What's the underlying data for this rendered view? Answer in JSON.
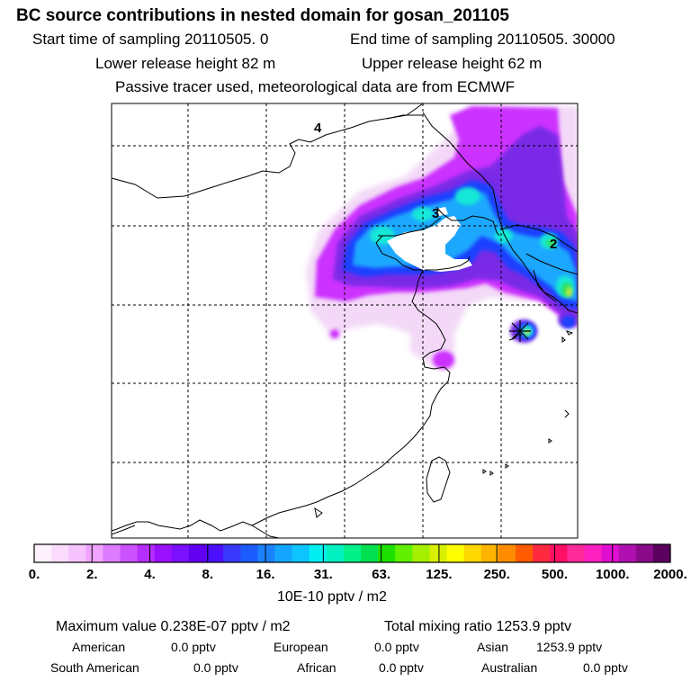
{
  "header": {
    "title": "BC  source contributions in nested domain for gosan_201105",
    "start_time": "Start time of sampling 20110505.     0",
    "end_time": "End time of sampling 20110505. 30000",
    "lower_release": "Lower release height   82 m",
    "upper_release": "Upper release height   62 m",
    "tracer_note": "Passive tracer used, meteorological data are from ECMWF"
  },
  "map": {
    "region_labels": [
      "4",
      "3",
      "2"
    ],
    "receptor_marker": "gosan-station-marker",
    "colors": {
      "low": "#f3d9f7",
      "magenta": "#cc33ff",
      "purple": "#7a2ae6",
      "blue": "#1a40ff",
      "lightblue": "#1ea8ff",
      "cyan": "#13e8d7",
      "green": "#2ee05a",
      "yellow": "#c9ee2a"
    }
  },
  "colorbar": {
    "colors": [
      "#fef2ff",
      "#fbdcff",
      "#f6c3ff",
      "#f0a3ff",
      "#dd7cff",
      "#cc52ff",
      "#b52dff",
      "#9a10ff",
      "#7a10ff",
      "#6200f2",
      "#4c10ff",
      "#3a3aff",
      "#1c5cff",
      "#1a82ff",
      "#14a6ff",
      "#0dc4ff",
      "#00f0f2",
      "#00f0c0",
      "#00f08a",
      "#00e050",
      "#1ee000",
      "#60f000",
      "#a4f000",
      "#d8f000",
      "#ffff00",
      "#ffd800",
      "#ffb400",
      "#ff8c00",
      "#ff5a00",
      "#ff2a40",
      "#ff1066",
      "#ff2a9a",
      "#ff20c0",
      "#e00ed0",
      "#b010b0",
      "#8a0a8a",
      "#5c0060"
    ],
    "tick_labels": [
      "0.",
      "2.",
      "4.",
      "8.",
      "16.",
      "31.",
      "63.",
      "125.",
      "250.",
      "500.",
      "1000.",
      "2000."
    ],
    "units": "10E-10 pptv / m2"
  },
  "stats": {
    "max_value": "Maximum value  0.238E-07 pptv / m2",
    "total_mixing": "Total mixing ratio     1253.9 pptv",
    "american_label": "American",
    "american_value": "0.0 pptv",
    "european_label": "European",
    "european_value": "0.0 pptv",
    "asian_label": "Asian",
    "asian_value": "1253.9 pptv",
    "south_american_label": "South American",
    "south_american_value": "0.0 pptv",
    "african_label": "African",
    "african_value": "0.0 pptv",
    "australian_label": "Australian",
    "australian_value": "0.0 pptv"
  }
}
